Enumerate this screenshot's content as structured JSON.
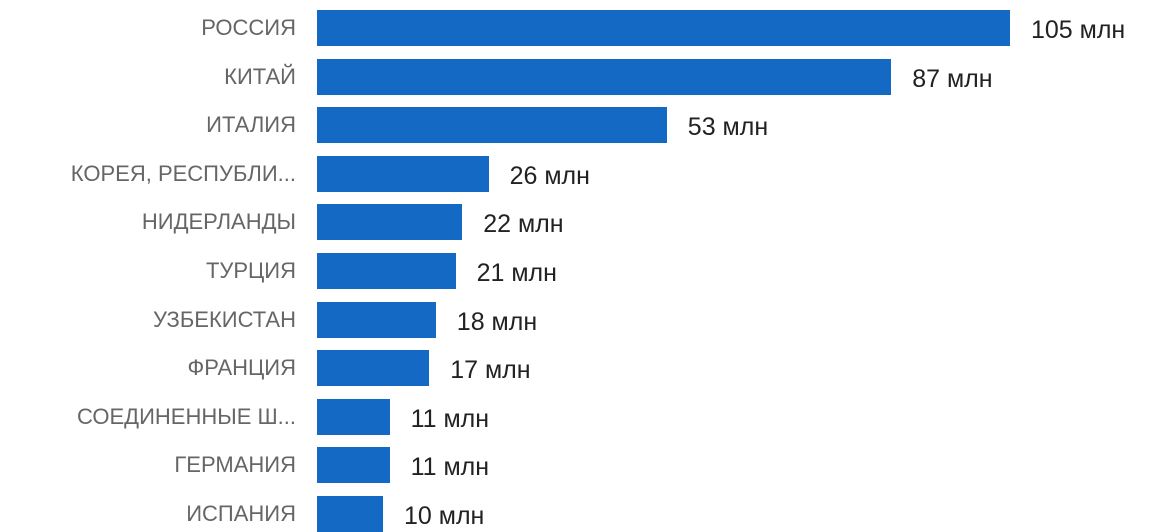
{
  "chart_data": {
    "type": "bar",
    "orientation": "horizontal",
    "grid": false,
    "color": "#1469c4",
    "categories": [
      "РОССИЯ",
      "КИТАЙ",
      "ИТАЛИЯ",
      "КОРЕЯ, РЕСПУБЛИ...",
      "НИДЕРЛАНДЫ",
      "ТУРЦИЯ",
      "УЗБЕКИСТАН",
      "ФРАНЦИЯ",
      "СОЕДИНЕННЫЕ Ш...",
      "ГЕРМАНИЯ",
      "ИСПАНИЯ"
    ],
    "values": [
      105,
      87,
      53,
      26,
      22,
      21,
      18,
      17,
      11,
      11,
      10
    ],
    "value_labels": [
      "105 млн",
      "87 млн",
      "53 млн",
      "26 млн",
      "22 млн",
      "21 млн",
      "18 млн",
      "17 млн",
      "11 млн",
      "11 млн",
      "10 млн"
    ]
  }
}
